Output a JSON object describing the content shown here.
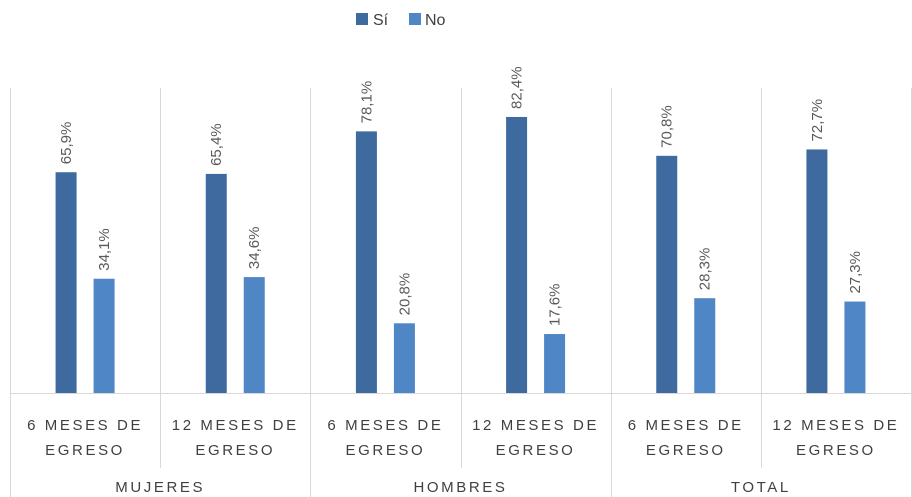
{
  "chart_data": {
    "type": "bar",
    "categories": [
      {
        "line1": "6 MESES DE",
        "line2": "EGRESO",
        "group": "MUJERES"
      },
      {
        "line1": "12 MESES DE",
        "line2": "EGRESO",
        "group": "MUJERES"
      },
      {
        "line1": "6 MESES DE",
        "line2": "EGRESO",
        "group": "HOMBRES"
      },
      {
        "line1": "12 MESES DE",
        "line2": "EGRESO",
        "group": "HOMBRES"
      },
      {
        "line1": "6 MESES DE",
        "line2": "EGRESO",
        "group": "TOTAL"
      },
      {
        "line1": "12 MESES DE",
        "line2": "EGRESO",
        "group": "TOTAL"
      }
    ],
    "groups": [
      "MUJERES",
      "HOMBRES",
      "TOTAL"
    ],
    "series": [
      {
        "name": "Sí",
        "color": "#3e6a9f",
        "values": [
          65.9,
          65.4,
          78.1,
          82.4,
          70.8,
          72.7
        ],
        "labels": [
          "65,9%",
          "65,4%",
          "78,1%",
          "82,4%",
          "70,8%",
          "72,7%"
        ]
      },
      {
        "name": "No",
        "color": "#4f86c6",
        "values": [
          34.1,
          34.6,
          20.8,
          17.6,
          28.3,
          27.3
        ],
        "labels": [
          "34,1%",
          "34,6%",
          "20,8%",
          "17,6%",
          "28,3%",
          "27,3%"
        ]
      }
    ],
    "ylim": [
      0,
      100
    ],
    "grid": false,
    "legend_position": "top-center"
  }
}
